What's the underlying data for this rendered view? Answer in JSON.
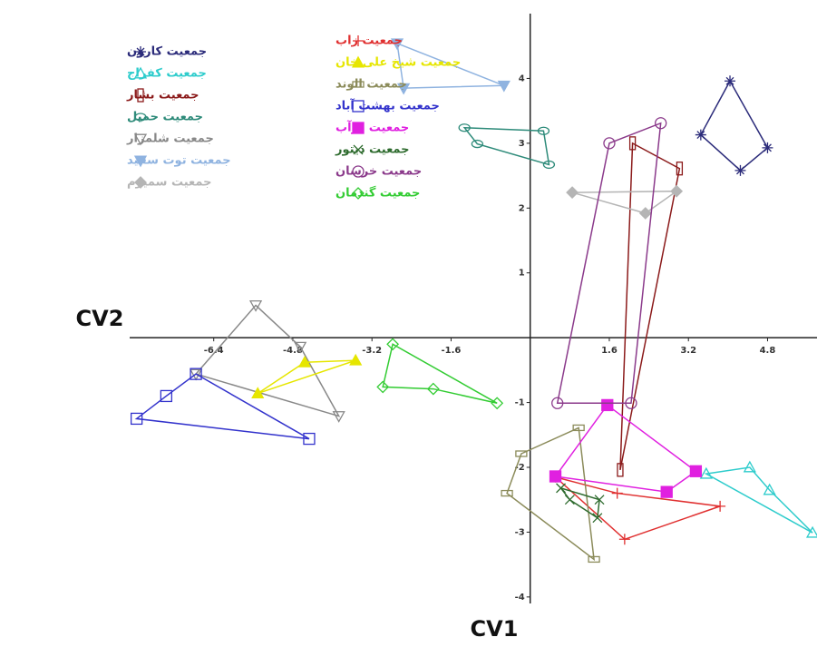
{
  "chart_data": {
    "type": "scatter",
    "x_label": "CV1",
    "y_label": "CV2",
    "xlim": [
      -8.1,
      5.8
    ],
    "ylim": [
      -4.1,
      5
    ],
    "xticks": [
      -6.4,
      -4.8,
      -3.2,
      -1.6,
      1.6,
      3.2,
      4.8
    ],
    "yticks": [
      -4,
      -3,
      -2,
      -1,
      1,
      2,
      3,
      4
    ],
    "series": [
      {
        "name": "جمعیت کارون",
        "color": "#2b2b7a",
        "marker": "asterisk",
        "x": [
          4.04,
          3.45,
          4.25,
          4.8
        ],
        "values": [
          3.96,
          3.13,
          2.58,
          2.93
        ]
      },
      {
        "name": "جمعیت کفراج",
        "color": "#2ecccc",
        "marker": "triangle",
        "x": [
          3.56,
          4.44,
          4.84,
          5.71
        ],
        "values": [
          -2.1,
          -2.0,
          -2.35,
          -3.01
        ]
      },
      {
        "name": "جمعیت بشار",
        "color": "#8b1a1a",
        "marker": "tall-rect",
        "x": [
          2.07,
          3.02,
          1.82
        ],
        "values": [
          3.0,
          2.61,
          -2.04
        ]
      },
      {
        "name": "جمعیت حمیل",
        "color": "#2e8b7a",
        "marker": "ellipse",
        "x": [
          -1.33,
          0.27,
          0.38,
          -1.07
        ],
        "values": [
          3.24,
          3.19,
          2.67,
          2.99
        ]
      },
      {
        "name": "جمعیت شلمزار",
        "color": "#888888",
        "marker": "down-triangle",
        "x": [
          -5.55,
          -4.65,
          -3.87,
          -6.76
        ],
        "values": [
          0.5,
          -0.14,
          -1.21,
          -0.56
        ]
      },
      {
        "name": "جمعیت توت سفید",
        "color": "#8fb3e0",
        "marker": "filled-down-triangle",
        "x": [
          -2.69,
          -0.53,
          -2.56
        ],
        "values": [
          4.54,
          3.89,
          3.85
        ]
      },
      {
        "name": "جمعیت سمیرم",
        "color": "#b5b5b5",
        "marker": "diamond-filled",
        "x": [
          0.85,
          2.96,
          2.33
        ],
        "values": [
          2.24,
          2.26,
          1.92
        ]
      },
      {
        "name": "جمعیت زاب",
        "color": "#e03030",
        "marker": "plus",
        "x": [
          0.51,
          1.76,
          3.84,
          1.91
        ],
        "values": [
          -2.15,
          -2.4,
          -2.6,
          -3.11
        ]
      },
      {
        "name": "جمعیت شیخ علی خان",
        "color": "#e6e600",
        "marker": "filled-triangle",
        "x": [
          -5.51,
          -4.56,
          -3.53
        ],
        "values": [
          -0.86,
          -0.38,
          -0.35
        ]
      },
      {
        "name": "جمعیت الوند",
        "color": "#8b8b5a",
        "marker": "wide-rect",
        "x": [
          -0.18,
          0.98,
          1.29,
          -0.47
        ],
        "values": [
          -1.79,
          -1.39,
          -3.42,
          -2.4
        ]
      },
      {
        "name": "جمعیت بهشت آباد",
        "color": "#3333cc",
        "marker": "square",
        "x": [
          -7.96,
          -7.36,
          -6.76,
          -4.47
        ],
        "values": [
          -1.25,
          -0.9,
          -0.56,
          -1.56
        ]
      },
      {
        "name": "جمعیت دوآب",
        "color": "#e020e0",
        "marker": "filled-square",
        "x": [
          1.56,
          3.35,
          2.76,
          0.51
        ],
        "values": [
          -1.04,
          -2.06,
          -2.38,
          -2.14
        ]
      },
      {
        "name": "جمعیت دیتور",
        "color": "#2e6b2e",
        "marker": "cross",
        "x": [
          0.62,
          1.4,
          1.36,
          0.8
        ],
        "values": [
          -2.32,
          -2.5,
          -2.78,
          -2.5
        ]
      },
      {
        "name": "جمعیت خرسان",
        "color": "#8b3a8b",
        "marker": "circle",
        "x": [
          0.55,
          1.6,
          2.64,
          2.04
        ],
        "values": [
          -1.01,
          3.0,
          3.31,
          -1.01
        ]
      },
      {
        "name": "جمعیت گندمان",
        "color": "#33cc33",
        "marker": "diamond",
        "x": [
          -2.78,
          -0.67,
          -1.96,
          -2.98
        ],
        "values": [
          -0.1,
          -1.01,
          -0.79,
          -0.76
        ]
      }
    ]
  }
}
